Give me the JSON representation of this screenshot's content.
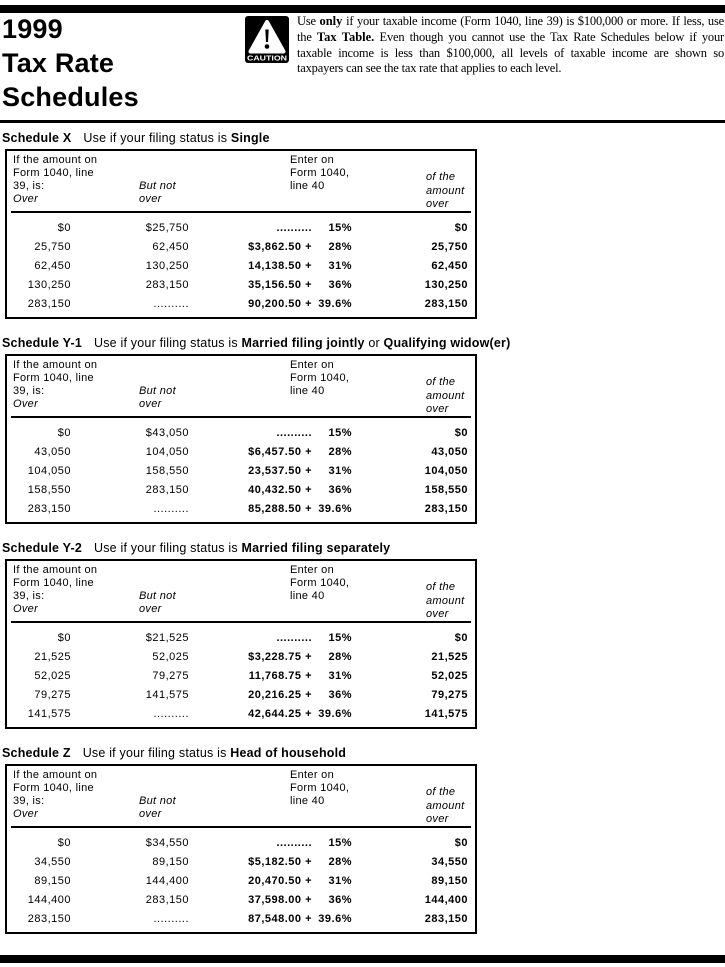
{
  "header": {
    "title": "1999\nTax Rate\nSchedules",
    "caution_label": "CAUTION",
    "intro": {
      "seg1": "Use ",
      "seg2_bold": "only",
      "seg3": " if your taxable income (Form 1040, line 39) is $100,000 or more. If less, use the ",
      "seg4_bold": "Tax Table.",
      "seg5": " Even though you cannot use the Tax Rate Schedules below if your taxable income is less than $100,000, all levels of taxable income are shown so taxpayers can see the tax rate that applies to each level."
    }
  },
  "table_header": {
    "amount_condition": "If the amount on\nForm 1040, line\n39, is:",
    "over": "Over",
    "but_not_over": "But not\nover",
    "enter_on": "Enter on\nForm 1040,\nline 40",
    "of_the_amount_over": "of the\namount\nover"
  },
  "schedules": [
    {
      "name": "Schedule X",
      "use_prefix": "Use if your filing status is ",
      "status1": "Single",
      "connector": "",
      "status2": "",
      "rows": [
        {
          "over": "$0",
          "but_not_over": "$25,750",
          "base": "..........",
          "rate": "15%",
          "amount_over": "$0"
        },
        {
          "over": "25,750",
          "but_not_over": "62,450",
          "base": "$3,862.50 +",
          "rate": "28%",
          "amount_over": "25,750"
        },
        {
          "over": "62,450",
          "but_not_over": "130,250",
          "base": "14,138.50 +",
          "rate": "31%",
          "amount_over": "62,450"
        },
        {
          "over": "130,250",
          "but_not_over": "283,150",
          "base": "35,156.50 +",
          "rate": "36%",
          "amount_over": "130,250"
        },
        {
          "over": "283,150",
          "but_not_over": "..........",
          "base": "90,200.50 +",
          "rate": "39.6%",
          "amount_over": "283,150"
        }
      ]
    },
    {
      "name": "Schedule Y-1",
      "use_prefix": "Use if your filing status is ",
      "status1": "Married filing jointly",
      "connector": " or ",
      "status2": "Qualifying widow(er)",
      "rows": [
        {
          "over": "$0",
          "but_not_over": "$43,050",
          "base": "..........",
          "rate": "15%",
          "amount_over": "$0"
        },
        {
          "over": "43,050",
          "but_not_over": "104,050",
          "base": "$6,457.50 +",
          "rate": "28%",
          "amount_over": "43,050"
        },
        {
          "over": "104,050",
          "but_not_over": "158,550",
          "base": "23,537.50 +",
          "rate": "31%",
          "amount_over": "104,050"
        },
        {
          "over": "158,550",
          "but_not_over": "283,150",
          "base": "40,432.50 +",
          "rate": "36%",
          "amount_over": "158,550"
        },
        {
          "over": "283,150",
          "but_not_over": "..........",
          "base": "85,288.50 +",
          "rate": "39.6%",
          "amount_over": "283,150"
        }
      ]
    },
    {
      "name": "Schedule Y-2",
      "use_prefix": "Use if your filing status is ",
      "status1": "Married filing separately",
      "connector": "",
      "status2": "",
      "rows": [
        {
          "over": "$0",
          "but_not_over": "$21,525",
          "base": "..........",
          "rate": "15%",
          "amount_over": "$0"
        },
        {
          "over": "21,525",
          "but_not_over": "52,025",
          "base": "$3,228.75 +",
          "rate": "28%",
          "amount_over": "21,525"
        },
        {
          "over": "52,025",
          "but_not_over": "79,275",
          "base": "11,768.75 +",
          "rate": "31%",
          "amount_over": "52,025"
        },
        {
          "over": "79,275",
          "but_not_over": "141,575",
          "base": "20,216.25 +",
          "rate": "36%",
          "amount_over": "79,275"
        },
        {
          "over": "141,575",
          "but_not_over": "..........",
          "base": "42,644.25 +",
          "rate": "39.6%",
          "amount_over": "141,575"
        }
      ]
    },
    {
      "name": "Schedule Z",
      "use_prefix": "Use if your filing status is ",
      "status1": "Head of household",
      "connector": "",
      "status2": "",
      "rows": [
        {
          "over": "$0",
          "but_not_over": "$34,550",
          "base": "..........",
          "rate": "15%",
          "amount_over": "$0"
        },
        {
          "over": "34,550",
          "but_not_over": "89,150",
          "base": "$5,182.50 +",
          "rate": "28%",
          "amount_over": "34,550"
        },
        {
          "over": "89,150",
          "but_not_over": "144,400",
          "base": "20,470.50 +",
          "rate": "31%",
          "amount_over": "89,150"
        },
        {
          "over": "144,400",
          "but_not_over": "283,150",
          "base": "37,598.00 +",
          "rate": "36%",
          "amount_over": "144,400"
        },
        {
          "over": "283,150",
          "but_not_over": "..........",
          "base": "87,548.00 +",
          "rate": "39.6%",
          "amount_over": "283,150"
        }
      ]
    }
  ]
}
